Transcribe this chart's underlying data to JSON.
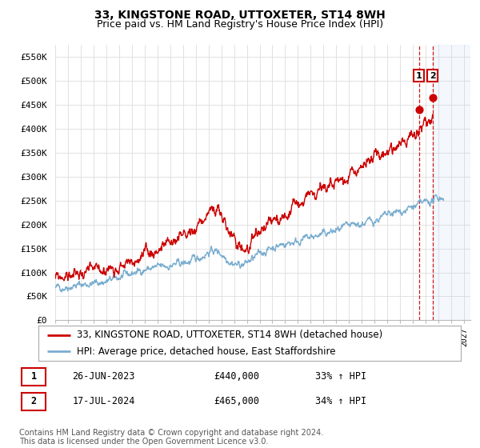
{
  "title": "33, KINGSTONE ROAD, UTTOXETER, ST14 8WH",
  "subtitle": "Price paid vs. HM Land Registry's House Price Index (HPI)",
  "ylabel_ticks": [
    "£0",
    "£50K",
    "£100K",
    "£150K",
    "£200K",
    "£250K",
    "£300K",
    "£350K",
    "£400K",
    "£450K",
    "£500K",
    "£550K"
  ],
  "ytick_values": [
    0,
    50000,
    100000,
    150000,
    200000,
    250000,
    300000,
    350000,
    400000,
    450000,
    500000,
    550000
  ],
  "ylim": [
    0,
    575000
  ],
  "xlim_start": 1995.0,
  "xlim_end": 2027.5,
  "legend_line1": "33, KINGSTONE ROAD, UTTOXETER, ST14 8WH (detached house)",
  "legend_line2": "HPI: Average price, detached house, East Staffordshire",
  "line1_color": "#cc0000",
  "line2_color": "#7aadcf",
  "event1_label": "1",
  "event1_date": "26-JUN-2023",
  "event1_price": "£440,000",
  "event1_hpi": "33% ↑ HPI",
  "event1_x": 2023.48,
  "event1_y": 440000,
  "event2_label": "2",
  "event2_date": "17-JUL-2024",
  "event2_price": "£465,000",
  "event2_hpi": "34% ↑ HPI",
  "event2_x": 2024.54,
  "event2_y": 465000,
  "footer": "Contains HM Land Registry data © Crown copyright and database right 2024.\nThis data is licensed under the Open Government Licence v3.0.",
  "background_color": "#ffffff",
  "grid_color": "#dddddd",
  "title_fontsize": 10,
  "subtitle_fontsize": 9,
  "tick_fontsize": 8,
  "legend_fontsize": 8.5,
  "footer_fontsize": 7
}
